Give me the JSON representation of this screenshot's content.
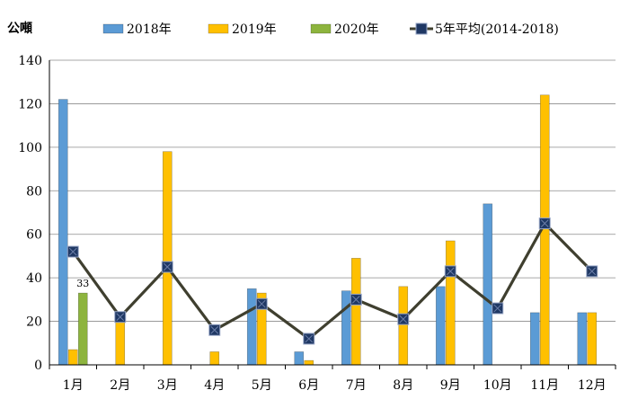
{
  "chart_data": {
    "type": "bar",
    "ylabel": "公噸",
    "ylim": [
      0,
      140
    ],
    "yticks": [
      0,
      20,
      40,
      60,
      80,
      100,
      120,
      140
    ],
    "grid": true,
    "legend_position": "top",
    "categories": [
      "1月",
      "2月",
      "3月",
      "4月",
      "5月",
      "6月",
      "7月",
      "8月",
      "9月",
      "10月",
      "11月",
      "12月"
    ],
    "series": [
      {
        "name": "2018年",
        "kind": "bar",
        "color": "#5b9bd5",
        "values": [
          122,
          null,
          null,
          null,
          35,
          6,
          34,
          null,
          36,
          74,
          24,
          24
        ]
      },
      {
        "name": "2019年",
        "kind": "bar",
        "color": "#ffc000",
        "values": [
          7,
          21,
          98,
          6,
          33,
          2,
          49,
          36,
          57,
          null,
          124,
          24
        ]
      },
      {
        "name": "2020年",
        "kind": "bar",
        "color": "#8db43e",
        "values": [
          33,
          null,
          null,
          null,
          null,
          null,
          null,
          null,
          null,
          null,
          null,
          null
        ]
      },
      {
        "name": "5年平均(2014-2018)",
        "kind": "line",
        "color": "#3f3f2f",
        "marker_color": "#1f3864",
        "values": [
          52,
          22,
          45,
          16,
          28,
          12,
          30,
          21,
          43,
          26,
          65,
          43
        ]
      }
    ],
    "annotations": [
      {
        "category": "1月",
        "series": "2020年",
        "text": "33"
      }
    ]
  }
}
